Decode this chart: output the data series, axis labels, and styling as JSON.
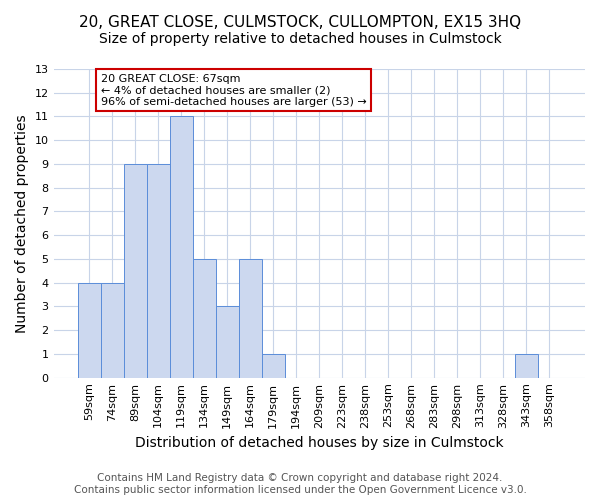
{
  "title": "20, GREAT CLOSE, CULMSTOCK, CULLOMPTON, EX15 3HQ",
  "subtitle": "Size of property relative to detached houses in Culmstock",
  "xlabel": "Distribution of detached houses by size in Culmstock",
  "ylabel": "Number of detached properties",
  "categories": [
    "59sqm",
    "74sqm",
    "89sqm",
    "104sqm",
    "119sqm",
    "134sqm",
    "149sqm",
    "164sqm",
    "179sqm",
    "194sqm",
    "209sqm",
    "223sqm",
    "238sqm",
    "253sqm",
    "268sqm",
    "283sqm",
    "298sqm",
    "313sqm",
    "328sqm",
    "343sqm",
    "358sqm"
  ],
  "values": [
    4,
    4,
    9,
    9,
    11,
    5,
    3,
    5,
    1,
    0,
    0,
    0,
    0,
    0,
    0,
    0,
    0,
    0,
    0,
    1,
    0
  ],
  "bar_color": "#ccd8ef",
  "bar_edge_color": "#5b8dd9",
  "annotation_text": "20 GREAT CLOSE: 67sqm\n← 4% of detached houses are smaller (2)\n96% of semi-detached houses are larger (53) →",
  "annotation_box_color": "#ffffff",
  "annotation_box_edge_color": "#cc0000",
  "ylim": [
    0,
    13
  ],
  "yticks": [
    0,
    1,
    2,
    3,
    4,
    5,
    6,
    7,
    8,
    9,
    10,
    11,
    12,
    13
  ],
  "footer_line1": "Contains HM Land Registry data © Crown copyright and database right 2024.",
  "footer_line2": "Contains public sector information licensed under the Open Government Licence v3.0.",
  "background_color": "#ffffff",
  "grid_color": "#c8d4e8",
  "title_fontsize": 11,
  "subtitle_fontsize": 10,
  "axis_label_fontsize": 10,
  "tick_fontsize": 8,
  "annotation_fontsize": 8,
  "footer_fontsize": 7.5
}
